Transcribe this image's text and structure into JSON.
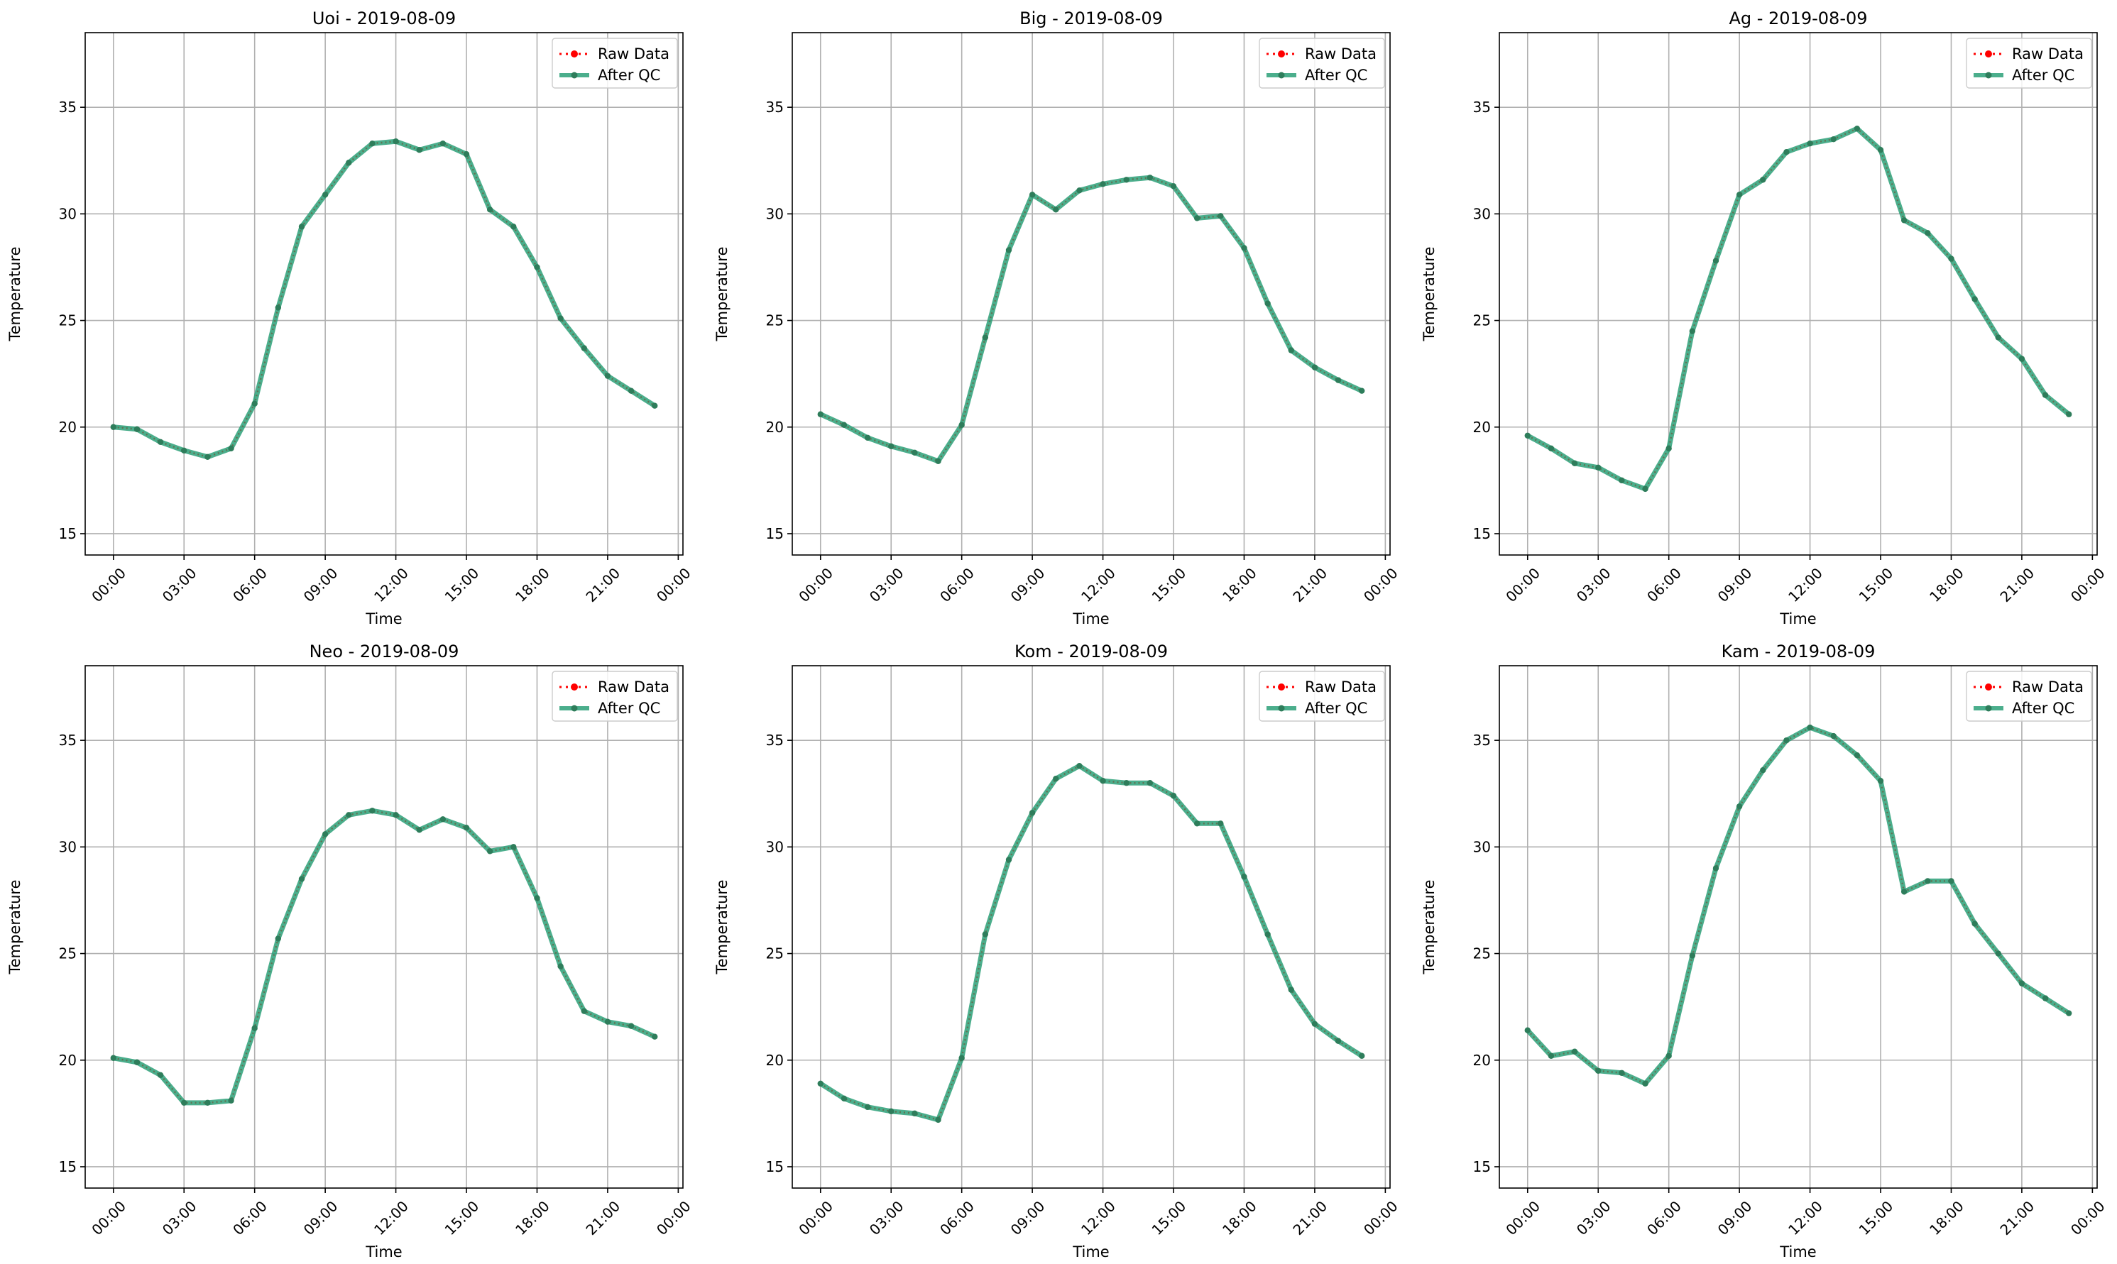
{
  "figure": {
    "legend_placement": "upper right",
    "grid": true,
    "colors": {
      "raw": "#ff0000",
      "qc": "#2ca078",
      "marker_qc": "#2e7d5b",
      "grid": "#b0b0b0"
    }
  },
  "chart_data": [
    {
      "type": "line",
      "title": "Uoi - 2019-08-09",
      "xlabel": "Time",
      "ylabel": "Temperature",
      "xticks": [
        "00:00",
        "03:00",
        "06:00",
        "09:00",
        "12:00",
        "15:00",
        "18:00",
        "21:00",
        "00:00"
      ],
      "yticks": [
        15,
        20,
        25,
        30,
        35
      ],
      "xlim": [
        -1.2,
        24.2
      ],
      "ylim": [
        14.0,
        38.5
      ],
      "x": [
        0,
        1,
        2,
        3,
        4,
        5,
        6,
        7,
        8,
        9,
        10,
        11,
        12,
        13,
        14,
        15,
        16,
        17,
        18,
        19,
        20,
        21,
        22,
        23
      ],
      "series": [
        {
          "name": "Raw Data",
          "values": [
            20.0,
            19.9,
            19.3,
            18.9,
            18.6,
            19.0,
            21.1,
            25.6,
            29.4,
            30.9,
            32.4,
            33.3,
            33.4,
            33.0,
            33.3,
            32.8,
            30.2,
            29.4,
            27.5,
            25.1,
            23.7,
            22.4,
            21.7,
            21.0
          ]
        },
        {
          "name": "After QC",
          "values": [
            20.0,
            19.9,
            19.3,
            18.9,
            18.6,
            19.0,
            21.1,
            25.6,
            29.4,
            30.9,
            32.4,
            33.3,
            33.4,
            33.0,
            33.3,
            32.8,
            30.2,
            29.4,
            27.5,
            25.1,
            23.7,
            22.4,
            21.7,
            21.0
          ]
        }
      ]
    },
    {
      "type": "line",
      "title": "Big - 2019-08-09",
      "xlabel": "Time",
      "ylabel": "Temperature",
      "xticks": [
        "00:00",
        "03:00",
        "06:00",
        "09:00",
        "12:00",
        "15:00",
        "18:00",
        "21:00",
        "00:00"
      ],
      "yticks": [
        15,
        20,
        25,
        30,
        35
      ],
      "xlim": [
        -1.2,
        24.2
      ],
      "ylim": [
        14.0,
        38.5
      ],
      "x": [
        0,
        1,
        2,
        3,
        4,
        5,
        6,
        7,
        8,
        9,
        10,
        11,
        12,
        13,
        14,
        15,
        16,
        17,
        18,
        19,
        20,
        21,
        22,
        23
      ],
      "series": [
        {
          "name": "Raw Data",
          "values": [
            20.6,
            20.1,
            19.5,
            19.1,
            18.8,
            18.4,
            20.1,
            24.2,
            28.3,
            30.9,
            30.2,
            31.1,
            31.4,
            31.6,
            31.7,
            31.3,
            29.8,
            29.9,
            28.4,
            25.8,
            23.6,
            22.8,
            22.2,
            21.7
          ]
        },
        {
          "name": "After QC",
          "values": [
            20.6,
            20.1,
            19.5,
            19.1,
            18.8,
            18.4,
            20.1,
            24.2,
            28.3,
            30.9,
            30.2,
            31.1,
            31.4,
            31.6,
            31.7,
            31.3,
            29.8,
            29.9,
            28.4,
            25.8,
            23.6,
            22.8,
            22.2,
            21.7
          ]
        }
      ]
    },
    {
      "type": "line",
      "title": "Ag - 2019-08-09",
      "xlabel": "Time",
      "ylabel": "Temperature",
      "xticks": [
        "00:00",
        "03:00",
        "06:00",
        "09:00",
        "12:00",
        "15:00",
        "18:00",
        "21:00",
        "00:00"
      ],
      "yticks": [
        15,
        20,
        25,
        30,
        35
      ],
      "xlim": [
        -1.2,
        24.2
      ],
      "ylim": [
        14.0,
        38.5
      ],
      "x": [
        0,
        1,
        2,
        3,
        4,
        5,
        6,
        7,
        8,
        9,
        10,
        11,
        12,
        13,
        14,
        15,
        16,
        17,
        18,
        19,
        20,
        21,
        22,
        23
      ],
      "series": [
        {
          "name": "Raw Data",
          "values": [
            19.6,
            19.0,
            18.3,
            18.1,
            17.5,
            17.1,
            19.0,
            24.5,
            27.8,
            30.9,
            31.6,
            32.9,
            33.3,
            33.5,
            34.0,
            33.0,
            29.7,
            29.1,
            27.9,
            26.0,
            24.2,
            23.2,
            21.5,
            20.6
          ]
        },
        {
          "name": "After QC",
          "values": [
            19.6,
            19.0,
            18.3,
            18.1,
            17.5,
            17.1,
            19.0,
            24.5,
            27.8,
            30.9,
            31.6,
            32.9,
            33.3,
            33.5,
            34.0,
            33.0,
            29.7,
            29.1,
            27.9,
            26.0,
            24.2,
            23.2,
            21.5,
            20.6
          ]
        }
      ]
    },
    {
      "type": "line",
      "title": "Neo - 2019-08-09",
      "xlabel": "Time",
      "ylabel": "Temperature",
      "xticks": [
        "00:00",
        "03:00",
        "06:00",
        "09:00",
        "12:00",
        "15:00",
        "18:00",
        "21:00",
        "00:00"
      ],
      "yticks": [
        15,
        20,
        25,
        30,
        35
      ],
      "xlim": [
        -1.2,
        24.2
      ],
      "ylim": [
        14.0,
        38.5
      ],
      "x": [
        0,
        1,
        2,
        3,
        4,
        5,
        6,
        7,
        8,
        9,
        10,
        11,
        12,
        13,
        14,
        15,
        16,
        17,
        18,
        19,
        20,
        21,
        22,
        23
      ],
      "series": [
        {
          "name": "Raw Data",
          "values": [
            20.1,
            19.9,
            19.3,
            18.0,
            18.0,
            18.1,
            21.5,
            25.7,
            28.5,
            30.6,
            31.5,
            31.7,
            31.5,
            30.8,
            31.3,
            30.9,
            29.8,
            30.0,
            27.6,
            24.4,
            22.3,
            21.8,
            21.6,
            21.1
          ]
        },
        {
          "name": "After QC",
          "values": [
            20.1,
            19.9,
            19.3,
            18.0,
            18.0,
            18.1,
            21.5,
            25.7,
            28.5,
            30.6,
            31.5,
            31.7,
            31.5,
            30.8,
            31.3,
            30.9,
            29.8,
            30.0,
            27.6,
            24.4,
            22.3,
            21.8,
            21.6,
            21.1
          ]
        }
      ]
    },
    {
      "type": "line",
      "title": "Kom - 2019-08-09",
      "xlabel": "Time",
      "ylabel": "Temperature",
      "xticks": [
        "00:00",
        "03:00",
        "06:00",
        "09:00",
        "12:00",
        "15:00",
        "18:00",
        "21:00",
        "00:00"
      ],
      "yticks": [
        15,
        20,
        25,
        30,
        35
      ],
      "xlim": [
        -1.2,
        24.2
      ],
      "ylim": [
        14.0,
        38.5
      ],
      "x": [
        0,
        1,
        2,
        3,
        4,
        5,
        6,
        7,
        8,
        9,
        10,
        11,
        12,
        13,
        14,
        15,
        16,
        17,
        18,
        19,
        20,
        21,
        22,
        23
      ],
      "series": [
        {
          "name": "Raw Data",
          "values": [
            18.9,
            18.2,
            17.8,
            17.6,
            17.5,
            17.2,
            20.1,
            25.9,
            29.4,
            31.6,
            33.2,
            33.8,
            33.1,
            33.0,
            33.0,
            32.4,
            31.1,
            31.1,
            28.6,
            25.9,
            23.3,
            21.7,
            20.9,
            20.2
          ]
        },
        {
          "name": "After QC",
          "values": [
            18.9,
            18.2,
            17.8,
            17.6,
            17.5,
            17.2,
            20.1,
            25.9,
            29.4,
            31.6,
            33.2,
            33.8,
            33.1,
            33.0,
            33.0,
            32.4,
            31.1,
            31.1,
            28.6,
            25.9,
            23.3,
            21.7,
            20.9,
            20.2
          ]
        }
      ]
    },
    {
      "type": "line",
      "title": "Kam - 2019-08-09",
      "xlabel": "Time",
      "ylabel": "Temperature",
      "xticks": [
        "00:00",
        "03:00",
        "06:00",
        "09:00",
        "12:00",
        "15:00",
        "18:00",
        "21:00",
        "00:00"
      ],
      "yticks": [
        15,
        20,
        25,
        30,
        35
      ],
      "xlim": [
        -1.2,
        24.2
      ],
      "ylim": [
        14.0,
        38.5
      ],
      "x": [
        0,
        1,
        2,
        3,
        4,
        5,
        6,
        7,
        8,
        9,
        10,
        11,
        12,
        13,
        14,
        15,
        16,
        17,
        18,
        19,
        20,
        21,
        22,
        23
      ],
      "series": [
        {
          "name": "Raw Data",
          "values": [
            21.4,
            20.2,
            20.4,
            19.5,
            19.4,
            18.9,
            20.2,
            24.9,
            29.0,
            31.9,
            33.6,
            35.0,
            35.6,
            35.2,
            34.3,
            33.1,
            27.9,
            28.4,
            28.4,
            26.4,
            25.0,
            23.6,
            22.9,
            22.2
          ]
        },
        {
          "name": "After QC",
          "values": [
            21.4,
            20.2,
            20.4,
            19.5,
            19.4,
            18.9,
            20.2,
            24.9,
            29.0,
            31.9,
            33.6,
            35.0,
            35.6,
            35.2,
            34.3,
            33.1,
            27.9,
            28.4,
            28.4,
            26.4,
            25.0,
            23.6,
            22.9,
            22.2
          ]
        }
      ]
    }
  ]
}
